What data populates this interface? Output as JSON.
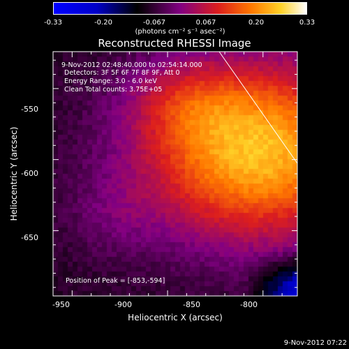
{
  "colorbar": {
    "ticks": [
      "-0.33",
      "-0.20",
      "-0.067",
      "0.067",
      "0.20",
      "0.33"
    ],
    "tick_values": [
      -0.33,
      -0.2,
      -0.067,
      0.067,
      0.2,
      0.33
    ],
    "range": [
      -0.33,
      0.33
    ],
    "unit": "(photons cm⁻² s⁻¹ asec⁻²)"
  },
  "annotations": {
    "time_range": "9-Nov-2012 02:48:40.000 to 02:54:14.000",
    "detectors": "Detectors: 3F 5F 6F 7F 8F 9F, Att 0",
    "energy_range": "Energy Range: 3.0 - 6.0 keV",
    "clean_counts": "Clean     Total counts: 3.75E+05",
    "peak_position": "Position of Peak = [-853,-594]"
  },
  "footer": {
    "date": "9-Nov-2012 07:22"
  },
  "chart_data": {
    "type": "heatmap",
    "title": "Reconstructed RHESSI Image",
    "xlabel": "Heliocentric X (arcsec)",
    "ylabel": "Heliocentric Y (arcsec)",
    "xlim": [
      -960,
      -832
    ],
    "ylim": [
      -696,
      -524
    ],
    "xticks": [
      -950,
      -900,
      -850,
      -800
    ],
    "xtick_labels": [
      "-950",
      "-900",
      "-850",
      "-800"
    ],
    "yticks": [
      -550,
      -600,
      -650
    ],
    "ytick_labels": [
      "-550",
      "-600",
      "-650"
    ],
    "peak": {
      "x": -853,
      "y": -594
    },
    "colormap": "rhessi-hot",
    "colors": {
      "low": "#0000ff",
      "mid_dark": "#000000",
      "mid": "#d02020",
      "high": "#ffffff"
    }
  }
}
